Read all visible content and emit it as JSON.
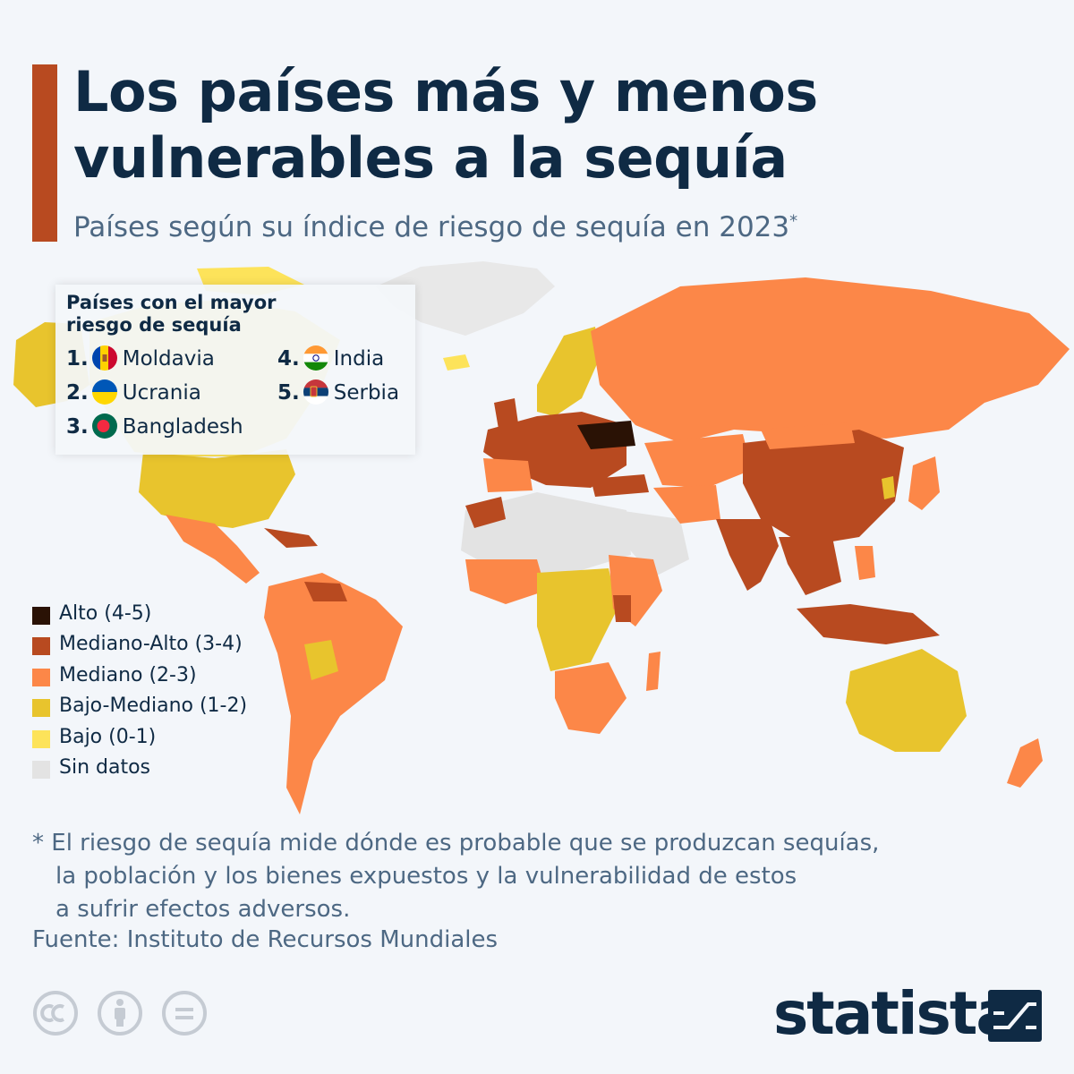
{
  "title": "Los países más y menos vulnerables a la sequía",
  "subtitle": "Países según su índice de riesgo de sequía en 2023",
  "subtitle_mark": "*",
  "top_risk": {
    "heading": "Países con el mayor riesgo de sequía",
    "countries": [
      {
        "rank": "1.",
        "name": "Moldavia",
        "flag": "moldova-flag-icon"
      },
      {
        "rank": "2.",
        "name": "Ucrania",
        "flag": "ukraine-flag-icon"
      },
      {
        "rank": "3.",
        "name": "Bangladesh",
        "flag": "bangladesh-flag-icon"
      },
      {
        "rank": "4.",
        "name": "India",
        "flag": "india-flag-icon"
      },
      {
        "rank": "5.",
        "name": "Serbia",
        "flag": "serbia-flag-icon"
      }
    ]
  },
  "legend": [
    {
      "label": "Alto (4-5)",
      "color": "#2a1205"
    },
    {
      "label": "Mediano-Alto (3-4)",
      "color": "#b84a20"
    },
    {
      "label": "Mediano (2-3)",
      "color": "#fc8748"
    },
    {
      "label": "Bajo-Mediano (1-2)",
      "color": "#e8c42d"
    },
    {
      "label": "Bajo (0-1)",
      "color": "#fde35a"
    },
    {
      "label": "Sin datos",
      "color": "#e3e3e3"
    }
  ],
  "footnote": [
    "* El riesgo de sequía mide dónde es probable que se produzcan sequías,",
    "la población y los bienes expuestos y la vulnerabilidad de estos",
    "a sufrir efectos adversos."
  ],
  "source": "Fuente: Instituto de Recursos Mundiales",
  "brand": "statista",
  "license_icons": [
    "cc-icon",
    "attribution-icon",
    "no-derivatives-icon"
  ],
  "colors": {
    "background": "#f3f6fa",
    "accent": "#b84a20",
    "navy": "#0f2a44",
    "muted": "#4d6883"
  }
}
